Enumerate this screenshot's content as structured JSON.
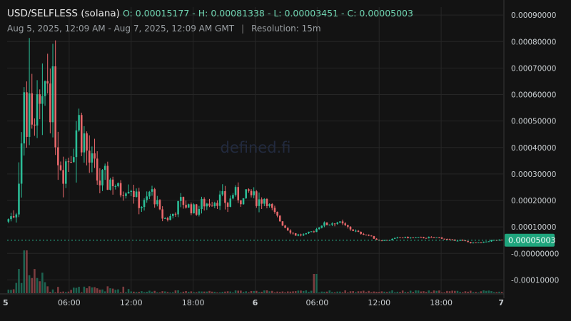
{
  "header": {
    "symbol": "USD/SELFLESS (solana)",
    "ohlc": "O: 0.00015177 - H: 0.00081338 - L: 0.00003451 - C: 0.00005003",
    "range": "Aug 5, 2025, 12:09 AM - Aug 7, 2025, 12:09 AM GMT",
    "separator": "|",
    "resolution": "Resolution: 15m"
  },
  "watermark": "defined.fi",
  "colors": {
    "background": "#131313",
    "up": "#2bbd97",
    "down": "#e9686b",
    "grid": "#262626",
    "price_tag": "#1fa57d"
  },
  "chart_data": {
    "type": "candlestick",
    "ohlc": {
      "open": 0.00015177,
      "high": 0.00081338,
      "low": 3.451e-05,
      "close": 5.003e-05
    },
    "last_price_label": "0.00005003",
    "ylim": [
      -0.00015,
      0.00093
    ],
    "y_ticks": [
      {
        "value": 0.0009,
        "label": "0.00090000"
      },
      {
        "value": 0.0008,
        "label": "0.00080000"
      },
      {
        "value": 0.0007,
        "label": "0.00070000"
      },
      {
        "value": 0.0006,
        "label": "0.00060000"
      },
      {
        "value": 0.0005,
        "label": "0.00050000"
      },
      {
        "value": 0.0004,
        "label": "0.00040000"
      },
      {
        "value": 0.0003,
        "label": "0.00030000"
      },
      {
        "value": 0.0002,
        "label": "0.00020000"
      },
      {
        "value": 0.0001,
        "label": "0.00010000"
      },
      {
        "value": 0.0,
        "label": "-0.00000000"
      },
      {
        "value": -0.0001,
        "label": "-0.00010000"
      }
    ],
    "x_ticks": [
      {
        "hour": 0,
        "label": "5",
        "bold": true
      },
      {
        "hour": 6,
        "label": "06:00",
        "bold": false
      },
      {
        "hour": 12,
        "label": "12:00",
        "bold": false
      },
      {
        "hour": 18,
        "label": "18:00",
        "bold": false
      },
      {
        "hour": 24,
        "label": "6",
        "bold": true
      },
      {
        "hour": 30,
        "label": "06:00",
        "bold": false
      },
      {
        "hour": 36,
        "label": "12:00",
        "bold": false
      },
      {
        "hour": 42,
        "label": "18:00",
        "bold": false
      },
      {
        "hour": 48,
        "label": "7",
        "bold": true
      }
    ],
    "price_path": [
      [
        0,
        0.00012
      ],
      [
        1,
        0.00016
      ],
      [
        1.5,
        0.00048
      ],
      [
        2,
        0.00052
      ],
      [
        2.5,
        0.0005
      ],
      [
        3,
        0.00066
      ],
      [
        3.5,
        0.00052
      ],
      [
        4,
        0.00068
      ],
      [
        4.5,
        0.0006
      ],
      [
        5,
        0.0004
      ],
      [
        5.5,
        0.00033
      ],
      [
        6,
        0.00036
      ],
      [
        6.5,
        0.00043
      ],
      [
        7,
        0.0005
      ],
      [
        7.5,
        0.00045
      ],
      [
        8,
        0.00035
      ],
      [
        8.5,
        0.00031
      ],
      [
        9,
        0.00027
      ],
      [
        9.5,
        0.00027
      ],
      [
        10,
        0.00028
      ],
      [
        10.5,
        0.00027
      ],
      [
        11,
        0.00023
      ],
      [
        11.5,
        0.00025
      ],
      [
        12,
        0.00026
      ],
      [
        12.5,
        0.00022
      ],
      [
        13,
        0.00018
      ],
      [
        13.5,
        0.00019
      ],
      [
        14,
        0.00024
      ],
      [
        14.5,
        0.0002
      ],
      [
        15,
        0.00014
      ],
      [
        15.5,
        0.00013
      ],
      [
        16,
        0.00014
      ],
      [
        16.5,
        0.00017
      ],
      [
        17,
        0.0002
      ],
      [
        17.5,
        0.00018
      ],
      [
        18,
        0.00017
      ],
      [
        18.5,
        0.00016
      ],
      [
        19,
        0.00019
      ],
      [
        19.5,
        0.00019
      ],
      [
        20,
        0.0002
      ],
      [
        21,
        0.00021
      ],
      [
        21.5,
        0.00018
      ],
      [
        22,
        0.00023
      ],
      [
        23,
        0.0002
      ],
      [
        23.5,
        0.00023
      ],
      [
        24,
        0.00021
      ],
      [
        24.5,
        0.0002
      ],
      [
        25,
        0.00021
      ],
      [
        25.5,
        0.00018
      ],
      [
        26,
        0.00015
      ],
      [
        27,
        0.0001
      ],
      [
        28,
        7e-05
      ],
      [
        29,
        7e-05
      ],
      [
        30,
        9e-05
      ],
      [
        30.5,
        0.00011
      ],
      [
        31,
        0.00011
      ],
      [
        32,
        0.00012
      ],
      [
        33,
        0.0001
      ],
      [
        34,
        8e-05
      ],
      [
        35,
        7e-05
      ],
      [
        36,
        5e-05
      ],
      [
        37,
        5e-05
      ],
      [
        38,
        6e-05
      ],
      [
        39,
        6e-05
      ],
      [
        40,
        6e-05
      ],
      [
        41,
        6e-05
      ],
      [
        42,
        6e-05
      ],
      [
        43,
        5e-05
      ],
      [
        44,
        5e-05
      ],
      [
        45,
        4e-05
      ],
      [
        46,
        4e-05
      ],
      [
        47,
        5e-05
      ],
      [
        48,
        5e-05
      ]
    ],
    "volume_spikes": [
      {
        "hour": 2,
        "rel": 1.0
      },
      {
        "hour": 30,
        "rel": 0.45
      }
    ]
  }
}
